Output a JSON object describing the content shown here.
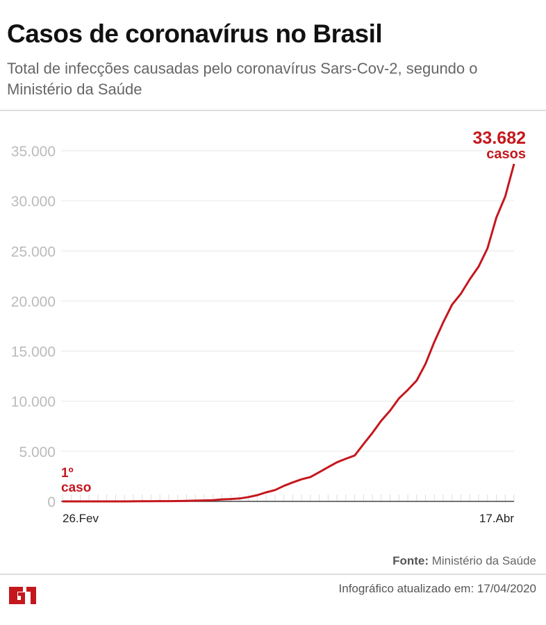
{
  "title": "Casos de coronavírus no Brasil",
  "subtitle": "Total de infecções causadas pelo coronavírus Sars-Cov-2, segundo o Ministério da Saúde",
  "footer": {
    "source_label": "Fonte:",
    "source_value": "Ministério da Saúde",
    "updated": "Infográfico atualizado em: 17/04/2020",
    "logo": "G1"
  },
  "colors": {
    "line": "#c4171d",
    "grid": "#e6e6e6",
    "axis": "#444444",
    "tick_label": "#bbbbbb"
  },
  "chart_data": {
    "type": "line",
    "title": "Casos de coronavírus no Brasil",
    "x_tick_labels": [
      "26.Fev",
      "17.Abr"
    ],
    "x_start": "2020-02-26",
    "x_end": "2020-04-17",
    "ylim": [
      0,
      35000
    ],
    "y_ticks": [
      0,
      5000,
      10000,
      15000,
      20000,
      25000,
      30000,
      35000
    ],
    "y_tick_labels": [
      "0",
      "5.000",
      "10.000",
      "15.000",
      "20.000",
      "25.000",
      "30.000",
      "35.000"
    ],
    "grid": true,
    "annotations": {
      "first": [
        "1º",
        "caso"
      ],
      "last": [
        "33.682",
        "casos"
      ]
    },
    "values": [
      1,
      1,
      1,
      2,
      2,
      2,
      2,
      3,
      8,
      13,
      19,
      25,
      25,
      34,
      52,
      77,
      98,
      121,
      200,
      234,
      291,
      428,
      621,
      904,
      1128,
      1546,
      1891,
      2201,
      2433,
      2915,
      3417,
      3904,
      4256,
      4579,
      5717,
      6836,
      8044,
      9056,
      10278,
      11130,
      12056,
      13717,
      15927,
      17857,
      19638,
      20727,
      22169,
      23430,
      25262,
      28320,
      30425,
      33682
    ]
  }
}
